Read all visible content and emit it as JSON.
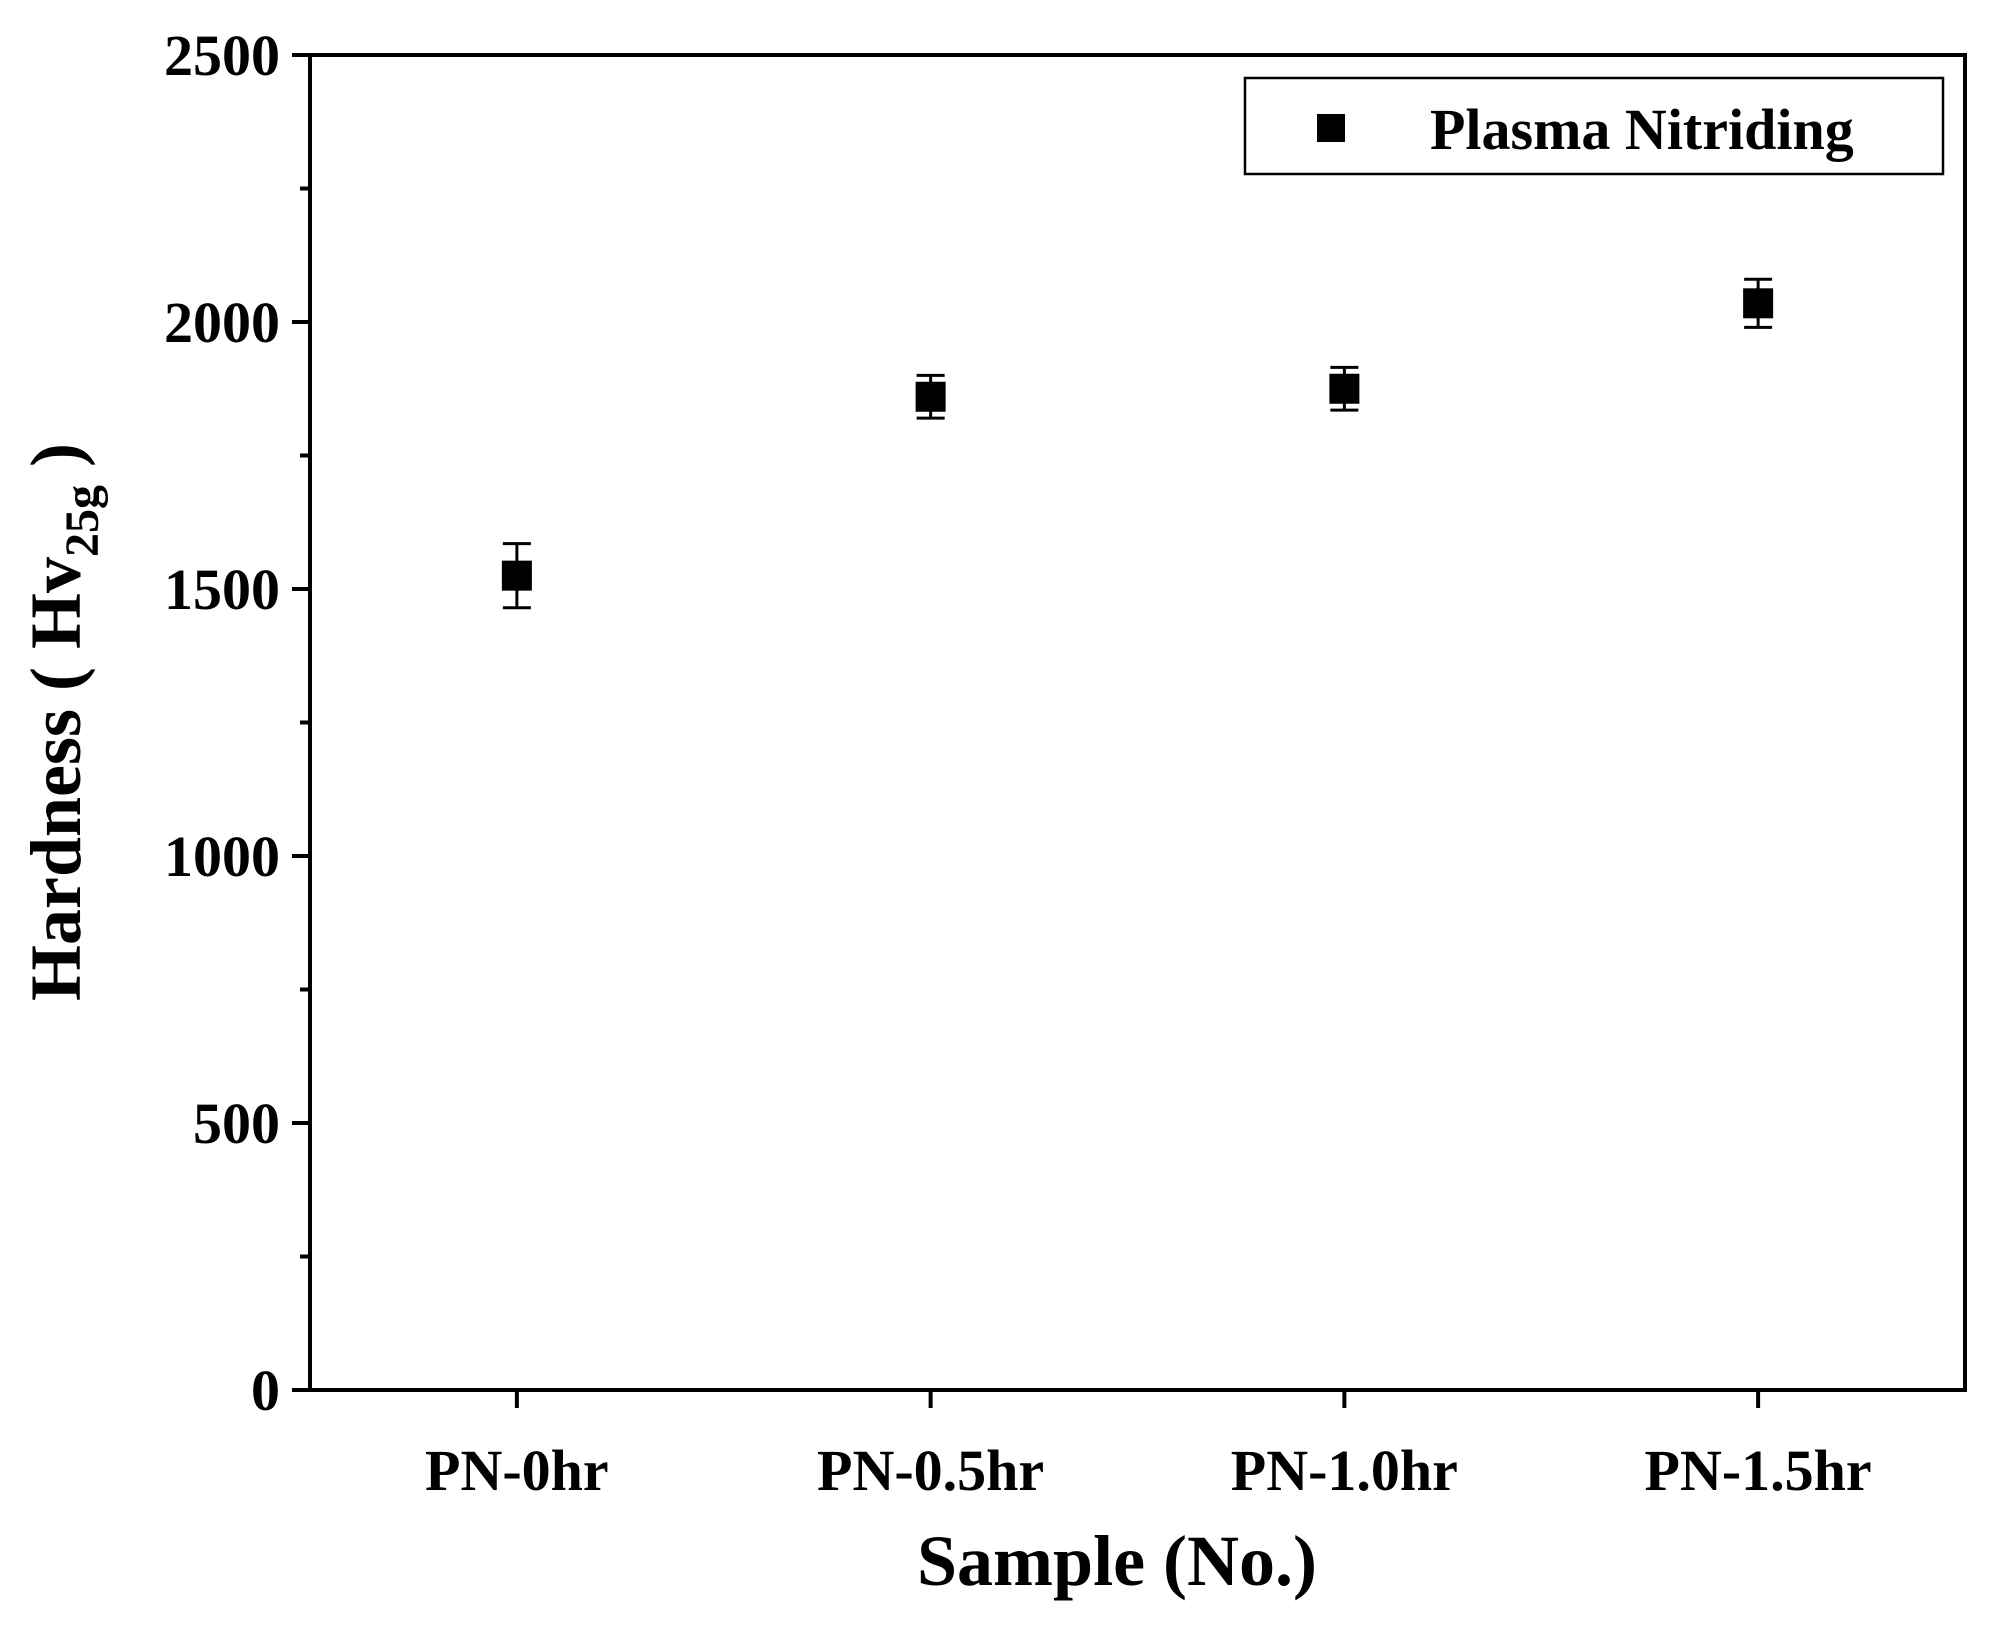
{
  "chart_data": {
    "type": "scatter",
    "categories": [
      "PN-0hr",
      "PN-0.5hr",
      "PN-1.0hr",
      "PN-1.5hr"
    ],
    "series": [
      {
        "name": "Plasma Nitriding",
        "values": [
          1525,
          1860,
          1875,
          2035
        ],
        "error": [
          60,
          40,
          40,
          45
        ]
      }
    ],
    "xlabel": "Sample (No.)",
    "ylabel": {
      "main": "Hardness ( Hv",
      "sub": "25g",
      "close": " )"
    },
    "ylim": [
      0,
      2500
    ],
    "yticks": [
      "0",
      "500",
      "1000",
      "1500",
      "2000",
      "2500"
    ],
    "ytick_values": [
      0,
      500,
      1000,
      1500,
      2000,
      2500
    ],
    "yminor_step": 250,
    "grid": false,
    "legend_position": "top-right",
    "marker": "square",
    "color": "#000000"
  }
}
